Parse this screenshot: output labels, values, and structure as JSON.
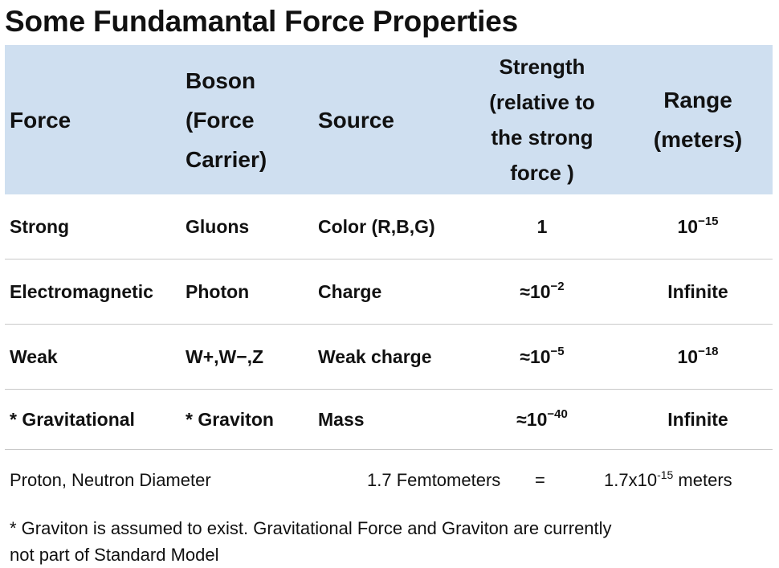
{
  "title": "Some Fundamantal Force Properties",
  "table": {
    "headers": {
      "force": "Force",
      "boson_line1": "Boson",
      "boson_line2": "(Force",
      "boson_line3": "Carrier)",
      "source": "Source",
      "strength_line1": "Strength",
      "strength_line2": "(relative to",
      "strength_line3": "the strong",
      "strength_line4": "force )",
      "range_line1": "Range",
      "range_line2": "(meters)"
    },
    "rows": [
      {
        "force": "Strong",
        "boson": "Gluons",
        "source": "Color (R,B,G)",
        "strength": "1",
        "strength_prefix": "",
        "strength_exp": "",
        "range_base": "10",
        "range_exp": "−15"
      },
      {
        "force": "Electromagnetic",
        "boson": "Photon",
        "source": "Charge",
        "strength_prefix": "≈10",
        "strength_exp": "−2",
        "range": "Infinite"
      },
      {
        "force": "Weak",
        "boson": "W+,W−,Z",
        "source": "Weak charge",
        "strength_prefix": "≈10",
        "strength_exp": "−5",
        "range_base": "10",
        "range_exp": "−18"
      },
      {
        "force": "* Gravitational",
        "boson": "* Graviton",
        "source": "Mass",
        "strength_prefix": "≈10",
        "strength_exp": "−40",
        "range": "Infinite"
      }
    ]
  },
  "proton": {
    "label": "Proton, Neutron Diameter",
    "value": "1.7 Femtometers",
    "equals": "=",
    "meters_base": "1.7x10",
    "meters_exp": "-15",
    "meters_unit": " meters"
  },
  "footnote": {
    "line1": "* Graviton is assumed to exist. Gravitational Force and Graviton are currently",
    "line2": "not part of Standard Model"
  }
}
